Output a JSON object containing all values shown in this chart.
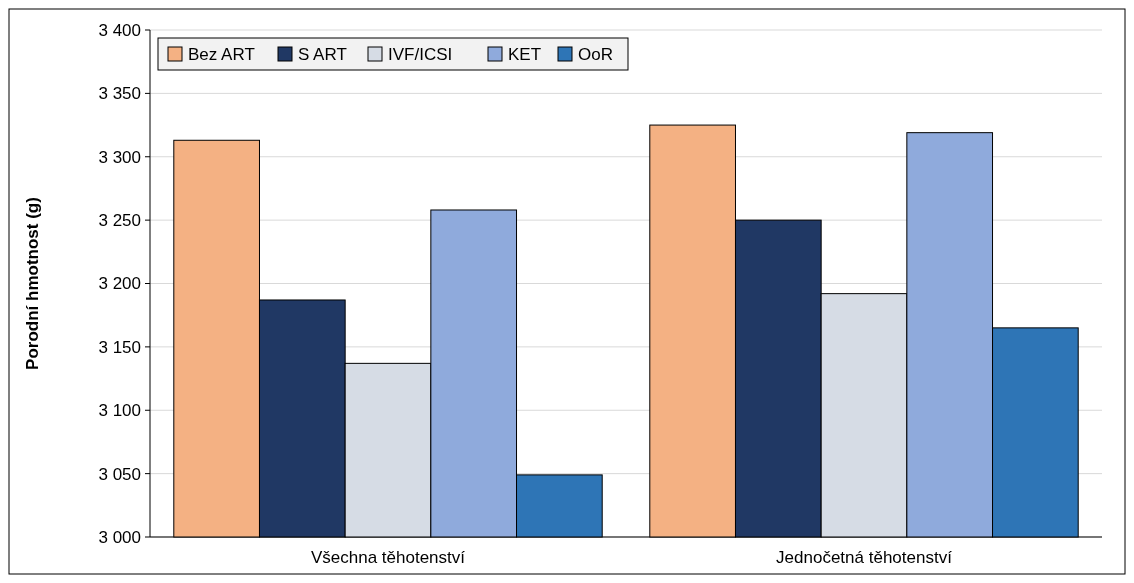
{
  "chart_data": {
    "type": "bar",
    "ylabel": "Porodní hmotnost (g)",
    "categories": [
      "Všechna těhotenství",
      "Jednočetná těhotenství"
    ],
    "series": [
      {
        "name": "Bez ART",
        "color": "#f4b183",
        "values": [
          3313,
          3325
        ]
      },
      {
        "name": "S ART",
        "color": "#203864",
        "values": [
          3187,
          3250
        ]
      },
      {
        "name": "IVF/ICSI",
        "color": "#d6dce5",
        "values": [
          3137,
          3192
        ]
      },
      {
        "name": "KET",
        "color": "#8faadc",
        "values": [
          3258,
          3319
        ]
      },
      {
        "name": "OoR",
        "color": "#2e75b6",
        "values": [
          3049,
          3165
        ]
      }
    ],
    "ylim": [
      3000,
      3400
    ],
    "yticks": [
      {
        "value": 3000,
        "label": "3 000"
      },
      {
        "value": 3050,
        "label": "3 050"
      },
      {
        "value": 3100,
        "label": "3 100"
      },
      {
        "value": 3150,
        "label": "3 150"
      },
      {
        "value": 3200,
        "label": "3 200"
      },
      {
        "value": 3250,
        "label": "3 250"
      },
      {
        "value": 3300,
        "label": "3 300"
      },
      {
        "value": 3350,
        "label": "3 350"
      },
      {
        "value": 3400,
        "label": "3 400"
      }
    ],
    "grid": "y",
    "legend": "top left"
  }
}
